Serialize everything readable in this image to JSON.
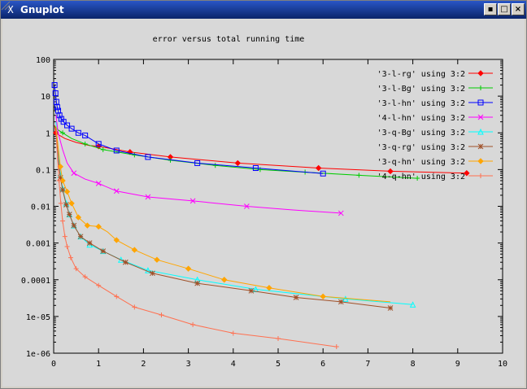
{
  "window": {
    "title": "Gnuplot",
    "app_icon": "X",
    "buttons": {
      "minimize": "▪",
      "maximize": "□",
      "close": "×"
    }
  },
  "chart_data": {
    "type": "line",
    "title": "error versus total running time",
    "xlabel": "",
    "ylabel": "",
    "xlim": [
      0,
      10
    ],
    "ylim": [
      1e-06,
      100
    ],
    "yscale": "log",
    "grid": false,
    "legend_position": "top-right",
    "x_ticks": [
      {
        "v": 0,
        "label": "0"
      },
      {
        "v": 1,
        "label": "1"
      },
      {
        "v": 2,
        "label": "2"
      },
      {
        "v": 3,
        "label": "3"
      },
      {
        "v": 4,
        "label": "4"
      },
      {
        "v": 5,
        "label": "5"
      },
      {
        "v": 6,
        "label": "6"
      },
      {
        "v": 7,
        "label": "7"
      },
      {
        "v": 8,
        "label": "8"
      },
      {
        "v": 9,
        "label": "9"
      },
      {
        "v": 10,
        "label": "10"
      }
    ],
    "y_ticks": [
      {
        "v": 100,
        "label": "100"
      },
      {
        "v": 10,
        "label": "10"
      },
      {
        "v": 1,
        "label": "1"
      },
      {
        "v": 0.1,
        "label": "0.1"
      },
      {
        "v": 0.01,
        "label": "0.01"
      },
      {
        "v": 0.001,
        "label": "0.001"
      },
      {
        "v": 0.0001,
        "label": "0.0001"
      },
      {
        "v": 1e-05,
        "label": "1e-05"
      },
      {
        "v": 1e-06,
        "label": "1e-06"
      }
    ],
    "series": [
      {
        "name": "'3-l-rg' using 3:2",
        "color": "#ff0000",
        "marker": "diamond",
        "points": [
          [
            0.02,
            1.6
          ],
          [
            0.05,
            1.0
          ],
          [
            0.1,
            0.9
          ],
          [
            0.25,
            0.7
          ],
          [
            0.5,
            0.55
          ],
          [
            0.8,
            0.45
          ],
          [
            1.0,
            0.43
          ],
          [
            1.4,
            0.35
          ],
          [
            1.7,
            0.3
          ],
          [
            2.6,
            0.22
          ],
          [
            4.1,
            0.15
          ],
          [
            5.9,
            0.11
          ],
          [
            7.5,
            0.09
          ],
          [
            9.2,
            0.08
          ]
        ],
        "marker_points": [
          [
            0.05,
            1.0
          ],
          [
            1.0,
            0.43
          ],
          [
            1.7,
            0.3
          ],
          [
            2.6,
            0.22
          ],
          [
            4.1,
            0.15
          ],
          [
            5.9,
            0.11
          ],
          [
            7.5,
            0.09
          ],
          [
            9.2,
            0.08
          ]
        ]
      },
      {
        "name": "'3-l-Bg' using 3:2",
        "color": "#00cc00",
        "marker": "plus",
        "points": [
          [
            0.02,
            1.5
          ],
          [
            0.1,
            1.2
          ],
          [
            0.2,
            1.0
          ],
          [
            0.4,
            0.7
          ],
          [
            0.7,
            0.5
          ],
          [
            1.1,
            0.35
          ],
          [
            1.8,
            0.25
          ],
          [
            2.6,
            0.18
          ],
          [
            3.6,
            0.13
          ],
          [
            4.6,
            0.1
          ],
          [
            5.6,
            0.085
          ],
          [
            6.8,
            0.07
          ],
          [
            8.1,
            0.058
          ]
        ],
        "marker_points": [
          [
            0.2,
            1.0
          ],
          [
            0.7,
            0.5
          ],
          [
            1.1,
            0.35
          ],
          [
            1.8,
            0.25
          ],
          [
            2.6,
            0.18
          ],
          [
            3.6,
            0.13
          ],
          [
            4.6,
            0.1
          ],
          [
            5.6,
            0.085
          ],
          [
            6.8,
            0.07
          ],
          [
            8.1,
            0.058
          ]
        ]
      },
      {
        "name": "'3-l-hn' using 3:2",
        "color": "#0000ff",
        "marker": "square",
        "points": [
          [
            0.02,
            20
          ],
          [
            0.04,
            12
          ],
          [
            0.06,
            7
          ],
          [
            0.08,
            5
          ],
          [
            0.1,
            4
          ],
          [
            0.13,
            3
          ],
          [
            0.17,
            2.4
          ],
          [
            0.22,
            2.0
          ],
          [
            0.3,
            1.6
          ],
          [
            0.4,
            1.3
          ],
          [
            0.55,
            1.0
          ],
          [
            0.7,
            0.85
          ],
          [
            1.0,
            0.5
          ],
          [
            1.4,
            0.33
          ],
          [
            2.1,
            0.22
          ],
          [
            3.2,
            0.15
          ],
          [
            4.5,
            0.11
          ],
          [
            6.0,
            0.078
          ]
        ],
        "marker_points": [
          [
            0.02,
            20
          ],
          [
            0.04,
            12
          ],
          [
            0.06,
            7
          ],
          [
            0.08,
            5
          ],
          [
            0.1,
            4
          ],
          [
            0.13,
            3
          ],
          [
            0.17,
            2.4
          ],
          [
            0.22,
            2.0
          ],
          [
            0.3,
            1.6
          ],
          [
            0.4,
            1.3
          ],
          [
            0.55,
            1.0
          ],
          [
            0.7,
            0.85
          ],
          [
            1.0,
            0.5
          ],
          [
            1.4,
            0.33
          ],
          [
            2.1,
            0.22
          ],
          [
            3.2,
            0.15
          ],
          [
            4.5,
            0.11
          ],
          [
            6.0,
            0.078
          ]
        ]
      },
      {
        "name": "'4-l-hn' using 3:2",
        "color": "#ff00ff",
        "marker": "cross",
        "points": [
          [
            0.05,
            3.0
          ],
          [
            0.1,
            1.0
          ],
          [
            0.2,
            0.35
          ],
          [
            0.3,
            0.15
          ],
          [
            0.45,
            0.08
          ],
          [
            0.7,
            0.055
          ],
          [
            1.0,
            0.042
          ],
          [
            1.4,
            0.026
          ],
          [
            2.1,
            0.018
          ],
          [
            3.1,
            0.014
          ],
          [
            4.3,
            0.01
          ],
          [
            5.3,
            0.008
          ],
          [
            6.4,
            0.0065
          ]
        ],
        "marker_points": [
          [
            0.45,
            0.08
          ],
          [
            1.0,
            0.042
          ],
          [
            1.4,
            0.026
          ],
          [
            2.1,
            0.018
          ],
          [
            3.1,
            0.014
          ],
          [
            4.3,
            0.01
          ],
          [
            6.4,
            0.0065
          ]
        ]
      },
      {
        "name": "'3-q-Bg' using 3:2",
        "color": "#00ffff",
        "marker": "triangle",
        "points": [
          [
            0.05,
            2.0
          ],
          [
            0.1,
            0.3
          ],
          [
            0.15,
            0.07
          ],
          [
            0.2,
            0.03
          ],
          [
            0.28,
            0.012
          ],
          [
            0.35,
            0.006
          ],
          [
            0.45,
            0.003
          ],
          [
            0.6,
            0.0015
          ],
          [
            0.8,
            0.0009
          ],
          [
            1.1,
            0.0006
          ],
          [
            1.5,
            0.00035
          ],
          [
            2.1,
            0.00018
          ],
          [
            3.2,
            0.0001
          ],
          [
            4.5,
            5.5e-05
          ],
          [
            6.5,
            3e-05
          ],
          [
            8.0,
            2.1e-05
          ]
        ],
        "marker_points": [
          [
            0.15,
            0.07
          ],
          [
            0.2,
            0.03
          ],
          [
            0.28,
            0.012
          ],
          [
            0.35,
            0.006
          ],
          [
            0.45,
            0.003
          ],
          [
            0.6,
            0.0015
          ],
          [
            0.8,
            0.0009
          ],
          [
            1.1,
            0.0006
          ],
          [
            1.5,
            0.00035
          ],
          [
            2.1,
            0.00018
          ],
          [
            3.2,
            0.0001
          ],
          [
            4.5,
            5.5e-05
          ],
          [
            6.5,
            3e-05
          ],
          [
            8.0,
            2.1e-05
          ]
        ]
      },
      {
        "name": "'3-q-rg' using 3:2",
        "color": "#a05028",
        "marker": "star",
        "points": [
          [
            0.05,
            1.5
          ],
          [
            0.1,
            0.2
          ],
          [
            0.15,
            0.06
          ],
          [
            0.2,
            0.028
          ],
          [
            0.28,
            0.011
          ],
          [
            0.35,
            0.006
          ],
          [
            0.45,
            0.003
          ],
          [
            0.6,
            0.0015
          ],
          [
            0.8,
            0.001
          ],
          [
            1.1,
            0.0006
          ],
          [
            1.6,
            0.0003
          ],
          [
            2.2,
            0.00015
          ],
          [
            3.2,
            8e-05
          ],
          [
            4.4,
            5e-05
          ],
          [
            5.4,
            3.3e-05
          ],
          [
            6.4,
            2.5e-05
          ],
          [
            7.5,
            1.7e-05
          ]
        ],
        "marker_points": [
          [
            0.15,
            0.06
          ],
          [
            0.2,
            0.028
          ],
          [
            0.28,
            0.011
          ],
          [
            0.35,
            0.006
          ],
          [
            0.45,
            0.003
          ],
          [
            0.6,
            0.0015
          ],
          [
            0.8,
            0.001
          ],
          [
            1.1,
            0.0006
          ],
          [
            1.6,
            0.0003
          ],
          [
            2.2,
            0.00015
          ],
          [
            3.2,
            8e-05
          ],
          [
            4.4,
            5e-05
          ],
          [
            5.4,
            3.3e-05
          ],
          [
            6.4,
            2.5e-05
          ],
          [
            7.5,
            1.7e-05
          ]
        ]
      },
      {
        "name": "'3-q-hn' using 3:2",
        "color": "#ffa500",
        "marker": "diamond",
        "points": [
          [
            0.05,
            1.5
          ],
          [
            0.1,
            0.4
          ],
          [
            0.15,
            0.12
          ],
          [
            0.2,
            0.05
          ],
          [
            0.3,
            0.025
          ],
          [
            0.4,
            0.012
          ],
          [
            0.55,
            0.005
          ],
          [
            0.75,
            0.003
          ],
          [
            1.0,
            0.0028
          ],
          [
            1.2,
            0.002
          ],
          [
            1.4,
            0.0012
          ],
          [
            1.8,
            0.00065
          ],
          [
            2.3,
            0.00035
          ],
          [
            3.0,
            0.0002
          ],
          [
            3.8,
            0.0001
          ],
          [
            4.8,
            6e-05
          ],
          [
            6.0,
            3.5e-05
          ],
          [
            7.5,
            2.5e-05
          ]
        ],
        "marker_points": [
          [
            0.15,
            0.12
          ],
          [
            0.2,
            0.05
          ],
          [
            0.3,
            0.025
          ],
          [
            0.4,
            0.012
          ],
          [
            0.55,
            0.005
          ],
          [
            0.75,
            0.003
          ],
          [
            1.0,
            0.0028
          ],
          [
            1.4,
            0.0012
          ],
          [
            1.8,
            0.00065
          ],
          [
            2.3,
            0.00035
          ],
          [
            3.0,
            0.0002
          ],
          [
            3.8,
            0.0001
          ],
          [
            4.8,
            6e-05
          ],
          [
            6.0,
            3.5e-05
          ]
        ]
      },
      {
        "name": "'4-q-hn' using 3:2",
        "color": "#ff7050",
        "marker": "plus",
        "points": [
          [
            0.05,
            1.2
          ],
          [
            0.08,
            0.3
          ],
          [
            0.12,
            0.05
          ],
          [
            0.16,
            0.012
          ],
          [
            0.2,
            0.004
          ],
          [
            0.25,
            0.0015
          ],
          [
            0.3,
            0.0008
          ],
          [
            0.38,
            0.0004
          ],
          [
            0.5,
            0.0002
          ],
          [
            0.7,
            0.00012
          ],
          [
            1.0,
            7e-05
          ],
          [
            1.4,
            3.5e-05
          ],
          [
            1.8,
            1.8e-05
          ],
          [
            2.4,
            1.1e-05
          ],
          [
            3.1,
            6e-06
          ],
          [
            4.0,
            3.5e-06
          ],
          [
            5.0,
            2.5e-06
          ],
          [
            6.3,
            1.5e-06
          ]
        ],
        "marker_points": [
          [
            0.12,
            0.05
          ],
          [
            0.16,
            0.012
          ],
          [
            0.2,
            0.004
          ],
          [
            0.25,
            0.0015
          ],
          [
            0.3,
            0.0008
          ],
          [
            0.38,
            0.0004
          ],
          [
            0.5,
            0.0002
          ],
          [
            0.7,
            0.00012
          ],
          [
            1.0,
            7e-05
          ],
          [
            1.4,
            3.5e-05
          ],
          [
            1.8,
            1.8e-05
          ],
          [
            2.4,
            1.1e-05
          ],
          [
            3.1,
            6e-06
          ],
          [
            4.0,
            3.5e-06
          ],
          [
            5.0,
            2.5e-06
          ],
          [
            6.3,
            1.5e-06
          ]
        ]
      }
    ]
  }
}
